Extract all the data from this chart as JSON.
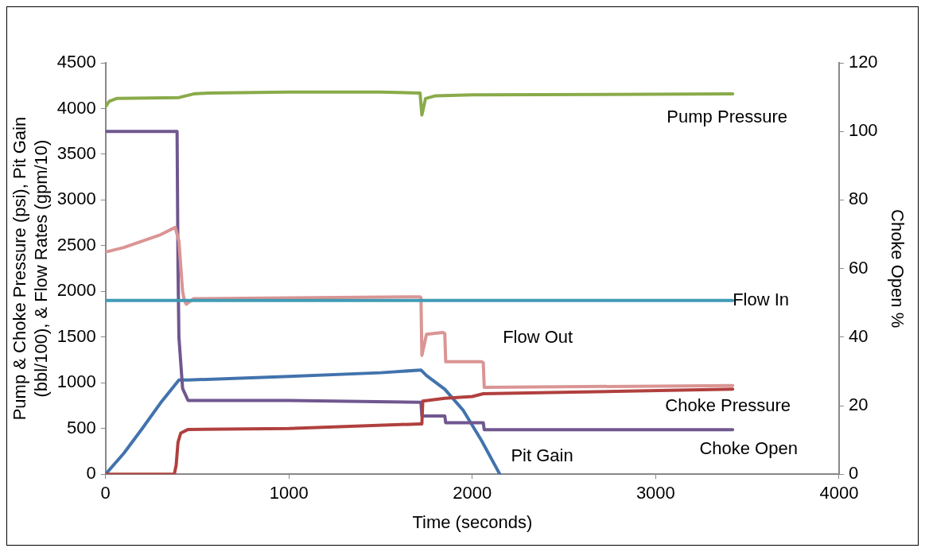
{
  "chart_data": {
    "type": "line",
    "xlabel": "Time (seconds)",
    "ylabel": "Pump & Choke Pressure (psi), Pit Gain (bbl/100), & Flow Rates (gpm/10)",
    "y2label": "Choke Open %",
    "xlim": [
      0,
      4000
    ],
    "xticks": [
      0,
      1000,
      2000,
      3000,
      4000
    ],
    "ylim": [
      0,
      4500
    ],
    "yticks": [
      0,
      500,
      1000,
      1500,
      2000,
      2500,
      3000,
      3500,
      4000,
      4500
    ],
    "y2lim": [
      0,
      120
    ],
    "y2ticks": [
      0,
      20,
      40,
      60,
      80,
      100,
      120
    ],
    "grid": false,
    "legend": false,
    "marker": "none",
    "line_style": "solid",
    "series": [
      {
        "name": "Pump Pressure",
        "color": "#8aab4a",
        "x": [
          0,
          20,
          60,
          400,
          480,
          560,
          1000,
          1500,
          1715,
          1725,
          1745,
          1800,
          2000,
          3420
        ],
        "values": [
          4020,
          4080,
          4110,
          4120,
          4160,
          4170,
          4180,
          4180,
          4170,
          3930,
          4110,
          4140,
          4150,
          4160
        ]
      },
      {
        "name": "Flow In",
        "color": "#3f9bb5",
        "x": [
          0,
          1000,
          2000,
          3420
        ],
        "values": [
          1900,
          1900,
          1900,
          1900
        ]
      },
      {
        "name": "Flow Out",
        "color": "#da9594",
        "x": [
          0,
          100,
          200,
          300,
          380,
          400,
          420,
          430,
          440,
          480,
          1000,
          1715,
          1720,
          1725,
          1750,
          1840,
          1850,
          1855,
          2050,
          2060,
          2065,
          3420
        ],
        "values": [
          2430,
          2480,
          2550,
          2620,
          2700,
          2550,
          2000,
          1900,
          1860,
          1920,
          1930,
          1940,
          1930,
          1300,
          1530,
          1550,
          1540,
          1230,
          1230,
          1220,
          950,
          970
        ]
      },
      {
        "name": "Choke Pressure",
        "color": "#b0403e",
        "x": [
          0,
          375,
          385,
          395,
          410,
          450,
          1000,
          1715,
          1725,
          1730,
          1850,
          2000,
          2060,
          3420
        ],
        "values": [
          0,
          0,
          100,
          350,
          450,
          490,
          500,
          550,
          550,
          800,
          830,
          850,
          880,
          930
        ]
      },
      {
        "name": "Choke Open",
        "color": "#70578f",
        "axis": "y2",
        "x": [
          0,
          390,
          395,
          400,
          420,
          450,
          1000,
          1715,
          1720,
          1725,
          1850,
          1855,
          2060,
          2065,
          3420
        ],
        "values": [
          100,
          100,
          60,
          40,
          25,
          21.5,
          21.5,
          21,
          21,
          17,
          17,
          15,
          15,
          13,
          13
        ]
      },
      {
        "name": "Pit Gain",
        "color": "#4273ad",
        "x": [
          0,
          100,
          200,
          300,
          400,
          450,
          1000,
          1500,
          1720,
          1750,
          1850,
          1950,
          2050,
          2150
        ],
        "values": [
          0,
          230,
          500,
          780,
          1030,
          1030,
          1070,
          1110,
          1140,
          1080,
          930,
          700,
          370,
          0
        ]
      }
    ]
  }
}
